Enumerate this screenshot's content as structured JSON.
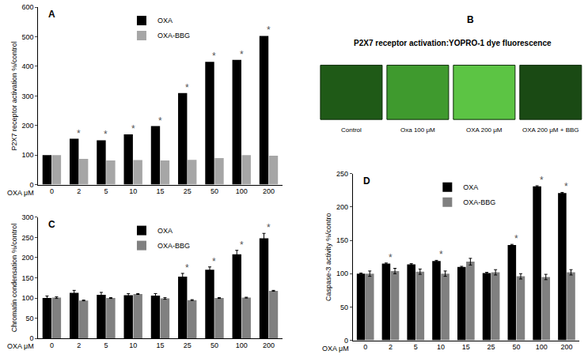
{
  "chart_data": [
    {
      "type": "bar",
      "title": "A",
      "xlabel": "OXA μM",
      "ylabel": "P2X7 receptor activation %/control",
      "categories": [
        "0",
        "2",
        "5",
        "10",
        "15",
        "25",
        "50",
        "100",
        "200"
      ],
      "series": [
        {
          "name": "OXA",
          "color": "#000000",
          "values": [
            100,
            155,
            150,
            170,
            198,
            310,
            415,
            422,
            503
          ]
        },
        {
          "name": "OXA-BBG",
          "color": "#a6a6a6",
          "values": [
            100,
            87,
            82,
            83,
            82,
            84,
            90,
            100,
            98
          ]
        }
      ],
      "ylim": [
        0,
        600
      ],
      "yticks": [
        0,
        100,
        200,
        300,
        400,
        500,
        600
      ],
      "grid": false,
      "legend": "top",
      "annotations": [
        {
          "category": "2",
          "text": "*"
        },
        {
          "category": "5",
          "text": "*"
        },
        {
          "category": "10",
          "text": "*"
        },
        {
          "category": "15",
          "text": "*"
        },
        {
          "category": "25",
          "text": "*"
        },
        {
          "category": "50",
          "text": "*"
        },
        {
          "category": "100",
          "text": "*"
        },
        {
          "category": "200",
          "text": "*"
        }
      ]
    },
    {
      "type": "bar",
      "title": "C",
      "xlabel": "OXA μM",
      "ylabel": "Chromatin condensation %/control",
      "categories": [
        "0",
        "2",
        "5",
        "10",
        "15",
        "25",
        "50",
        "100",
        "200"
      ],
      "series": [
        {
          "name": "OXA",
          "color": "#000000",
          "values": [
            100,
            113,
            108,
            107,
            106,
            153,
            170,
            208,
            248
          ],
          "errors": [
            5,
            6,
            6,
            4,
            5,
            8,
            7,
            10,
            12
          ]
        },
        {
          "name": "OXA-BBG",
          "color": "#808080",
          "values": [
            101,
            94,
            100,
            110,
            99,
            95,
            100,
            101,
            118
          ],
          "errors": [
            2,
            1,
            1,
            1,
            2,
            1,
            1,
            1,
            1
          ]
        }
      ],
      "ylim": [
        0,
        300
      ],
      "yticks": [
        0,
        50,
        100,
        150,
        200,
        250,
        300
      ],
      "grid": false,
      "legend": "top",
      "annotations": [
        {
          "category": "25",
          "text": "*"
        },
        {
          "category": "50",
          "text": "*"
        },
        {
          "category": "100",
          "text": "*"
        },
        {
          "category": "200",
          "text": "*"
        }
      ]
    },
    {
      "type": "bar",
      "title": "D",
      "xlabel": "OXA μM",
      "ylabel": "Caspase-3 activity %/contro",
      "categories": [
        "0",
        "2",
        "5",
        "10",
        "15",
        "25",
        "50",
        "100",
        "200"
      ],
      "series": [
        {
          "name": "OXA",
          "color": "#000000",
          "values": [
            100,
            115,
            114,
            119,
            110,
            101,
            143,
            231,
            221
          ],
          "errors": [
            1,
            1,
            1,
            1,
            1,
            1,
            1,
            1,
            1
          ]
        },
        {
          "name": "OXA-BBG",
          "color": "#808080",
          "values": [
            100,
            104,
            103,
            100,
            118,
            102,
            96,
            95,
            102
          ],
          "errors": [
            4,
            4,
            4,
            4,
            5,
            4,
            4,
            4,
            4
          ]
        }
      ],
      "ylim": [
        0,
        250
      ],
      "yticks": [
        0,
        50,
        100,
        150,
        200,
        250
      ],
      "grid": false,
      "legend": "top",
      "annotations": [
        {
          "category": "2",
          "text": "*"
        },
        {
          "category": "10",
          "text": "*"
        },
        {
          "category": "50",
          "text": "*"
        },
        {
          "category": "100",
          "text": "*"
        },
        {
          "category": "200",
          "text": "*"
        }
      ]
    }
  ],
  "image_panel": {
    "label": "B",
    "title": "P2X7 receptor activation:YOPRO-1 dye fluorescence",
    "captions": [
      "Control",
      "Oxa 100 μM",
      "OXA 200 μM",
      "OXA 200 μM + BBG"
    ]
  }
}
